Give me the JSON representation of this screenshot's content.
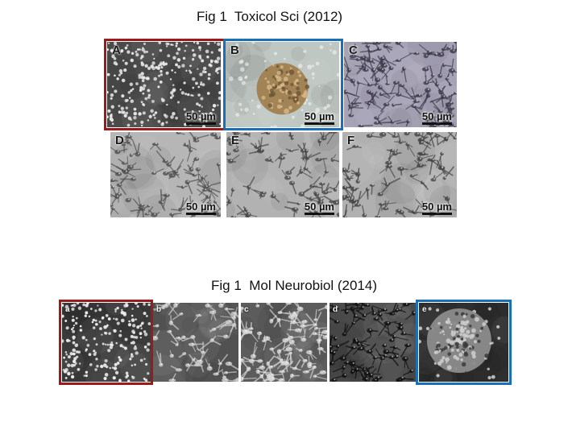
{
  "titles": {
    "top": "Fig 1  Toxicol Sci (2012)",
    "bottom": "Fig 1  Mol Neurobiol (2014)"
  },
  "top_panels": [
    {
      "label": "A",
      "scale": "50 µm",
      "tone": "dark-dots"
    },
    {
      "label": "B",
      "scale": "50 µm",
      "tone": "sphere-bright"
    },
    {
      "label": "C",
      "scale": "50 µm",
      "tone": "purple-cells"
    },
    {
      "label": "D",
      "scale": "50 µm",
      "tone": "gray-cells"
    },
    {
      "label": "E",
      "scale": "50 µm",
      "tone": "gray-cells"
    },
    {
      "label": "F",
      "scale": "50 µm",
      "tone": "gray-cells"
    }
  ],
  "bottom_panels": [
    {
      "label": "a",
      "tone": "dark-dots"
    },
    {
      "label": "b",
      "tone": "gray-cells"
    },
    {
      "label": "c",
      "tone": "gray-cells"
    },
    {
      "label": "d",
      "tone": "dark-cells"
    },
    {
      "label": "e",
      "tone": "sphere-dark"
    }
  ],
  "highlight_colors": {
    "red": "#9b1b1b",
    "blue": "#1a6fb5"
  }
}
